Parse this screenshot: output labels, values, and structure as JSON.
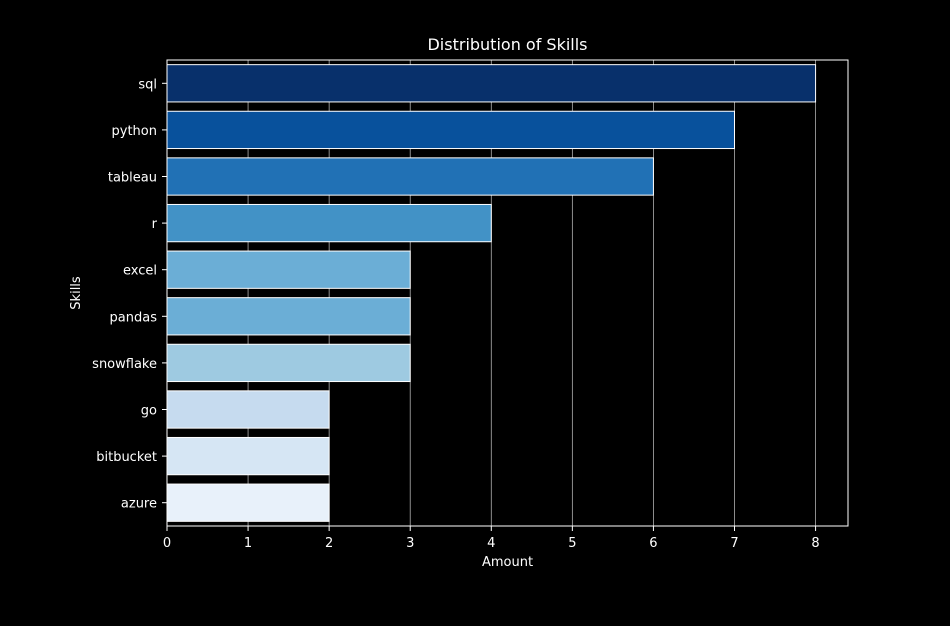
{
  "chart_data": {
    "type": "bar",
    "orientation": "horizontal",
    "title": "Distribution of Skills",
    "xlabel": "Amount",
    "ylabel": "Skills",
    "categories": [
      "sql",
      "python",
      "tableau",
      "r",
      "excel",
      "pandas",
      "snowflake",
      "go",
      "bitbucket",
      "azure"
    ],
    "values": [
      8,
      7,
      6,
      4,
      3,
      3,
      3,
      2,
      2,
      2
    ],
    "xlim": [
      0,
      8.4
    ],
    "xticks": [
      0,
      1,
      2,
      3,
      4,
      5,
      6,
      7,
      8
    ],
    "grid": "vertical",
    "colors": [
      "#08306b",
      "#08519c",
      "#2171b5",
      "#4292c6",
      "#6baed6",
      "#6baed6",
      "#9ecae1",
      "#c6dbef",
      "#d6e6f4",
      "#e8f1fa"
    ],
    "bar_edge_color": "#ffffff",
    "background_color": "#000000",
    "text_color": "#ffffff",
    "grid_color": "#b0b0b0"
  }
}
